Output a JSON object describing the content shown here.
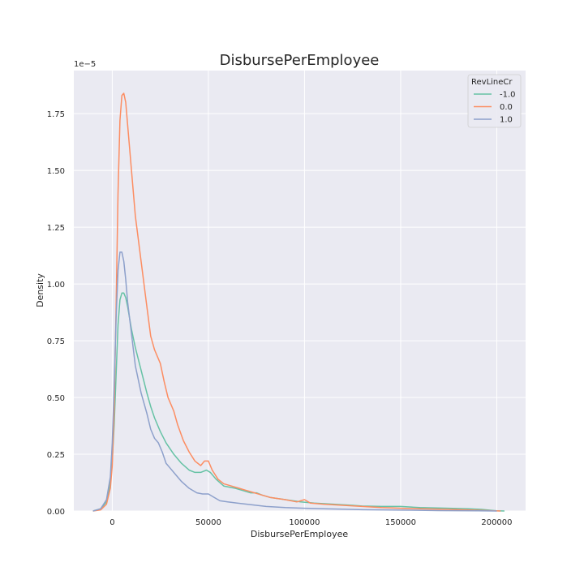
{
  "chart_data": {
    "type": "line",
    "title": "DisbursePerEmployee",
    "xlabel": "DisbursePerEmployee",
    "ylabel": "Density",
    "y_offset_label": "1e−5",
    "xlim": [
      -20000,
      215000
    ],
    "ylim": [
      0,
      1.94
    ],
    "x_ticks": [
      0,
      50000,
      100000,
      150000,
      200000
    ],
    "x_tick_labels": [
      "0",
      "50000",
      "100000",
      "150000",
      "200000"
    ],
    "y_ticks": [
      0,
      0.25,
      0.5,
      0.75,
      1.0,
      1.25,
      1.5,
      1.75
    ],
    "y_tick_labels": [
      "0.00",
      "0.25",
      "0.50",
      "0.75",
      "1.00",
      "1.25",
      "1.50",
      "1.75"
    ],
    "y_unit_scale": "1e-5",
    "grid": true,
    "legend": {
      "title": "RevLineCr",
      "position": "top-right"
    },
    "series": [
      {
        "name": "-1.0",
        "color": "#66c2a5",
        "points": [
          [
            -10000,
            0
          ],
          [
            -6000,
            0.01
          ],
          [
            -3000,
            0.04
          ],
          [
            -1000,
            0.12
          ],
          [
            0,
            0.22
          ],
          [
            1000,
            0.38
          ],
          [
            2000,
            0.6
          ],
          [
            3000,
            0.82
          ],
          [
            4000,
            0.93
          ],
          [
            5000,
            0.96
          ],
          [
            6000,
            0.96
          ],
          [
            7000,
            0.94
          ],
          [
            8000,
            0.9
          ],
          [
            10000,
            0.8
          ],
          [
            12000,
            0.72
          ],
          [
            15000,
            0.62
          ],
          [
            18000,
            0.52
          ],
          [
            20000,
            0.46
          ],
          [
            22000,
            0.41
          ],
          [
            25000,
            0.35
          ],
          [
            28000,
            0.3
          ],
          [
            32000,
            0.25
          ],
          [
            36000,
            0.21
          ],
          [
            40000,
            0.18
          ],
          [
            43000,
            0.17
          ],
          [
            46000,
            0.17
          ],
          [
            49000,
            0.18
          ],
          [
            51000,
            0.17
          ],
          [
            54000,
            0.14
          ],
          [
            58000,
            0.11
          ],
          [
            64000,
            0.1
          ],
          [
            68000,
            0.09
          ],
          [
            72000,
            0.08
          ],
          [
            75000,
            0.08
          ],
          [
            78000,
            0.07
          ],
          [
            82000,
            0.06
          ],
          [
            90000,
            0.05
          ],
          [
            98000,
            0.04
          ],
          [
            105000,
            0.035
          ],
          [
            115000,
            0.03
          ],
          [
            125000,
            0.025
          ],
          [
            130000,
            0.022
          ],
          [
            140000,
            0.02
          ],
          [
            150000,
            0.02
          ],
          [
            160000,
            0.015
          ],
          [
            175000,
            0.012
          ],
          [
            185000,
            0.01
          ],
          [
            192000,
            0.007
          ],
          [
            197000,
            0.003
          ],
          [
            200000,
            0.001
          ],
          [
            204000,
            0
          ]
        ]
      },
      {
        "name": "0.0",
        "color": "#fc8d62",
        "points": [
          [
            -10000,
            0
          ],
          [
            -6000,
            0.005
          ],
          [
            -3000,
            0.03
          ],
          [
            -1000,
            0.1
          ],
          [
            0,
            0.2
          ],
          [
            1000,
            0.45
          ],
          [
            2000,
            0.9
          ],
          [
            3000,
            1.4
          ],
          [
            4000,
            1.72
          ],
          [
            5000,
            1.83
          ],
          [
            6000,
            1.84
          ],
          [
            7000,
            1.8
          ],
          [
            8000,
            1.7
          ],
          [
            10000,
            1.5
          ],
          [
            12000,
            1.3
          ],
          [
            15000,
            1.1
          ],
          [
            18000,
            0.9
          ],
          [
            20000,
            0.77
          ],
          [
            22000,
            0.71
          ],
          [
            25000,
            0.65
          ],
          [
            27000,
            0.57
          ],
          [
            29000,
            0.5
          ],
          [
            32000,
            0.44
          ],
          [
            34000,
            0.38
          ],
          [
            37000,
            0.31
          ],
          [
            40000,
            0.26
          ],
          [
            43000,
            0.22
          ],
          [
            46000,
            0.2
          ],
          [
            48000,
            0.22
          ],
          [
            50000,
            0.22
          ],
          [
            52000,
            0.18
          ],
          [
            55000,
            0.14
          ],
          [
            58000,
            0.12
          ],
          [
            62000,
            0.11
          ],
          [
            66000,
            0.1
          ],
          [
            70000,
            0.09
          ],
          [
            74000,
            0.08
          ],
          [
            78000,
            0.07
          ],
          [
            82000,
            0.06
          ],
          [
            90000,
            0.05
          ],
          [
            96000,
            0.04
          ],
          [
            100000,
            0.05
          ],
          [
            103000,
            0.035
          ],
          [
            110000,
            0.03
          ],
          [
            120000,
            0.025
          ],
          [
            130000,
            0.02
          ],
          [
            140000,
            0.015
          ],
          [
            150000,
            0.012
          ],
          [
            160000,
            0.01
          ],
          [
            175000,
            0.007
          ],
          [
            185000,
            0.005
          ],
          [
            195000,
            0.002
          ],
          [
            202000,
            0
          ]
        ]
      },
      {
        "name": "1.0",
        "color": "#8da0cb",
        "points": [
          [
            -10000,
            0
          ],
          [
            -6000,
            0.01
          ],
          [
            -3000,
            0.05
          ],
          [
            -1000,
            0.15
          ],
          [
            0,
            0.3
          ],
          [
            1000,
            0.55
          ],
          [
            2000,
            0.85
          ],
          [
            3000,
            1.06
          ],
          [
            4000,
            1.14
          ],
          [
            5000,
            1.14
          ],
          [
            6000,
            1.1
          ],
          [
            7000,
            1.02
          ],
          [
            8000,
            0.92
          ],
          [
            10000,
            0.78
          ],
          [
            12000,
            0.64
          ],
          [
            15000,
            0.52
          ],
          [
            18000,
            0.43
          ],
          [
            20000,
            0.36
          ],
          [
            22000,
            0.32
          ],
          [
            24000,
            0.3
          ],
          [
            26000,
            0.26
          ],
          [
            28000,
            0.21
          ],
          [
            30000,
            0.19
          ],
          [
            33000,
            0.16
          ],
          [
            36000,
            0.13
          ],
          [
            40000,
            0.1
          ],
          [
            44000,
            0.08
          ],
          [
            47000,
            0.075
          ],
          [
            50000,
            0.075
          ],
          [
            53000,
            0.06
          ],
          [
            56000,
            0.045
          ],
          [
            60000,
            0.04
          ],
          [
            65000,
            0.035
          ],
          [
            70000,
            0.03
          ],
          [
            75000,
            0.025
          ],
          [
            80000,
            0.02
          ],
          [
            90000,
            0.015
          ],
          [
            100000,
            0.012
          ],
          [
            110000,
            0.01
          ],
          [
            120000,
            0.008
          ],
          [
            130000,
            0.006
          ],
          [
            150000,
            0.004
          ],
          [
            170000,
            0.002
          ],
          [
            190000,
            0.001
          ],
          [
            200000,
            0
          ]
        ]
      }
    ]
  }
}
